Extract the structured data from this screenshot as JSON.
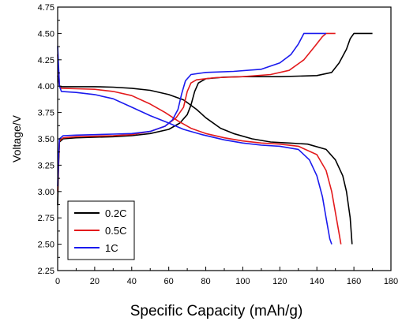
{
  "chart_data": {
    "type": "line",
    "xlabel": "Specific Capacity  (mAh/g)",
    "ylabel": "Voltage/V",
    "xlim": [
      0,
      180
    ],
    "ylim": [
      2.25,
      4.75
    ],
    "xticks": [
      0,
      20,
      40,
      60,
      80,
      100,
      120,
      140,
      160,
      180
    ],
    "yticks": [
      2.25,
      2.5,
      2.75,
      3.0,
      3.25,
      3.5,
      3.75,
      4.0,
      4.25,
      4.5,
      4.75
    ],
    "ytick_labels": [
      "2.25",
      "2.50",
      "2.75",
      "3.00",
      "3.25",
      "3.50",
      "3.75",
      "4.00",
      "4.25",
      "4.50",
      "4.75"
    ],
    "grid": false,
    "legend_position": "bottom-left",
    "series": [
      {
        "name": "0.2C",
        "color": "#000000",
        "charge": [
          [
            0,
            2.87
          ],
          [
            0.5,
            3.25
          ],
          [
            1,
            3.47
          ],
          [
            3,
            3.5
          ],
          [
            10,
            3.51
          ],
          [
            20,
            3.515
          ],
          [
            30,
            3.52
          ],
          [
            40,
            3.53
          ],
          [
            50,
            3.55
          ],
          [
            60,
            3.59
          ],
          [
            66,
            3.65
          ],
          [
            70,
            3.73
          ],
          [
            72,
            3.82
          ],
          [
            74,
            3.95
          ],
          [
            76,
            4.03
          ],
          [
            80,
            4.07
          ],
          [
            90,
            4.085
          ],
          [
            100,
            4.09
          ],
          [
            120,
            4.09
          ],
          [
            140,
            4.1
          ],
          [
            148,
            4.13
          ],
          [
            152,
            4.22
          ],
          [
            156,
            4.35
          ],
          [
            158,
            4.45
          ],
          [
            160,
            4.5
          ],
          [
            170,
            4.5
          ]
        ],
        "discharge": [
          [
            0,
            4.1
          ],
          [
            1,
            4.0
          ],
          [
            2,
            3.995
          ],
          [
            10,
            3.995
          ],
          [
            20,
            3.995
          ],
          [
            30,
            3.99
          ],
          [
            40,
            3.98
          ],
          [
            50,
            3.96
          ],
          [
            60,
            3.92
          ],
          [
            68,
            3.87
          ],
          [
            75,
            3.78
          ],
          [
            80,
            3.7
          ],
          [
            88,
            3.6
          ],
          [
            95,
            3.55
          ],
          [
            105,
            3.5
          ],
          [
            115,
            3.47
          ],
          [
            125,
            3.46
          ],
          [
            135,
            3.45
          ],
          [
            145,
            3.4
          ],
          [
            150,
            3.3
          ],
          [
            154,
            3.15
          ],
          [
            156,
            3.0
          ],
          [
            158,
            2.75
          ],
          [
            159,
            2.5
          ]
        ]
      },
      {
        "name": "0.5C",
        "color": "#e31a1c",
        "charge": [
          [
            0,
            3.0
          ],
          [
            0.5,
            3.3
          ],
          [
            1,
            3.48
          ],
          [
            3,
            3.51
          ],
          [
            10,
            3.52
          ],
          [
            20,
            3.525
          ],
          [
            30,
            3.53
          ],
          [
            40,
            3.54
          ],
          [
            50,
            3.57
          ],
          [
            58,
            3.62
          ],
          [
            64,
            3.7
          ],
          [
            68,
            3.8
          ],
          [
            70,
            3.95
          ],
          [
            72,
            4.03
          ],
          [
            75,
            4.06
          ],
          [
            85,
            4.08
          ],
          [
            100,
            4.09
          ],
          [
            115,
            4.11
          ],
          [
            125,
            4.15
          ],
          [
            133,
            4.25
          ],
          [
            139,
            4.38
          ],
          [
            143,
            4.47
          ],
          [
            145,
            4.5
          ],
          [
            150,
            4.5
          ]
        ],
        "discharge": [
          [
            0,
            4.3
          ],
          [
            1,
            4.0
          ],
          [
            2,
            3.98
          ],
          [
            10,
            3.975
          ],
          [
            20,
            3.97
          ],
          [
            30,
            3.95
          ],
          [
            40,
            3.91
          ],
          [
            50,
            3.83
          ],
          [
            58,
            3.75
          ],
          [
            65,
            3.67
          ],
          [
            72,
            3.6
          ],
          [
            80,
            3.55
          ],
          [
            90,
            3.51
          ],
          [
            100,
            3.48
          ],
          [
            110,
            3.46
          ],
          [
            120,
            3.45
          ],
          [
            130,
            3.43
          ],
          [
            140,
            3.35
          ],
          [
            145,
            3.2
          ],
          [
            148,
            3.0
          ],
          [
            150,
            2.8
          ],
          [
            152,
            2.6
          ],
          [
            153,
            2.5
          ]
        ]
      },
      {
        "name": "1C",
        "color": "#1a1aee",
        "charge": [
          [
            0,
            3.05
          ],
          [
            0.5,
            3.35
          ],
          [
            1,
            3.5
          ],
          [
            3,
            3.53
          ],
          [
            10,
            3.535
          ],
          [
            20,
            3.54
          ],
          [
            30,
            3.545
          ],
          [
            40,
            3.55
          ],
          [
            50,
            3.57
          ],
          [
            58,
            3.62
          ],
          [
            62,
            3.68
          ],
          [
            65,
            3.78
          ],
          [
            67,
            3.93
          ],
          [
            69,
            4.05
          ],
          [
            72,
            4.11
          ],
          [
            80,
            4.13
          ],
          [
            95,
            4.14
          ],
          [
            110,
            4.16
          ],
          [
            120,
            4.22
          ],
          [
            126,
            4.3
          ],
          [
            130,
            4.4
          ],
          [
            133,
            4.5
          ],
          [
            145,
            4.5
          ]
        ],
        "discharge": [
          [
            0,
            4.38
          ],
          [
            1,
            4.0
          ],
          [
            2,
            3.95
          ],
          [
            10,
            3.94
          ],
          [
            20,
            3.92
          ],
          [
            30,
            3.88
          ],
          [
            40,
            3.8
          ],
          [
            50,
            3.72
          ],
          [
            60,
            3.65
          ],
          [
            68,
            3.59
          ],
          [
            78,
            3.54
          ],
          [
            90,
            3.49
          ],
          [
            100,
            3.46
          ],
          [
            110,
            3.44
          ],
          [
            120,
            3.43
          ],
          [
            130,
            3.4
          ],
          [
            136,
            3.3
          ],
          [
            140,
            3.15
          ],
          [
            143,
            2.95
          ],
          [
            145,
            2.75
          ],
          [
            147,
            2.55
          ],
          [
            148,
            2.5
          ]
        ]
      }
    ]
  }
}
